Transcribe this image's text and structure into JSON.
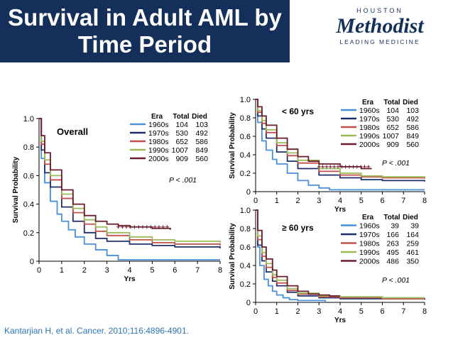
{
  "header": {
    "title_line1": "Survival in Adult AML by",
    "title_line2": "Time Period",
    "logo_top": "HOUSTON",
    "logo_main": "Methodist",
    "logo_sub": "LEADING MEDICINE"
  },
  "citation": "Kantarjian H, et al. Cancer. 2010;116:4896-4901.",
  "colors": {
    "title_bg": "#14305a",
    "1960s": "#4a90d9",
    "1970s": "#1f2f6b",
    "1980s": "#c0504d",
    "1990s": "#9bbb59",
    "2000s": "#6b1b2b"
  },
  "chart_data": [
    {
      "type": "line",
      "name": "overall",
      "title": "Overall",
      "xlabel": "Yrs",
      "ylabel": "Survival Probability",
      "xlim": [
        0,
        8
      ],
      "ylim": [
        0,
        1.0
      ],
      "xticks": [
        "0",
        "1",
        "2",
        "3",
        "4",
        "5",
        "6",
        "7",
        "8"
      ],
      "yticks": [
        "0",
        "0.2",
        "0.4",
        "0.6",
        "0.8",
        "1.0"
      ],
      "legend_headers": [
        "Era",
        "Total",
        "Died"
      ],
      "pvalue": "P < .001",
      "series": [
        {
          "name": "1960s",
          "total": "104",
          "died": "103",
          "x": [
            0,
            0.1,
            0.25,
            0.5,
            0.8,
            1.0,
            1.3,
            1.6,
            2.0,
            2.5,
            3.0,
            3.5,
            8.0
          ],
          "y": [
            1.0,
            0.72,
            0.55,
            0.42,
            0.33,
            0.28,
            0.22,
            0.17,
            0.12,
            0.08,
            0.04,
            0.01,
            0.01
          ]
        },
        {
          "name": "1970s",
          "total": "530",
          "died": "492",
          "x": [
            0,
            0.1,
            0.25,
            0.5,
            1.0,
            1.5,
            2.0,
            2.5,
            3.0,
            4.0,
            5.0,
            6.0,
            8.0
          ],
          "y": [
            1.0,
            0.78,
            0.62,
            0.52,
            0.38,
            0.28,
            0.2,
            0.16,
            0.14,
            0.12,
            0.11,
            0.1,
            0.09
          ]
        },
        {
          "name": "1980s",
          "total": "652",
          "died": "586",
          "x": [
            0,
            0.1,
            0.25,
            0.5,
            1.0,
            1.5,
            2.0,
            2.5,
            3.0,
            4.0,
            5.0,
            6.0,
            8.0
          ],
          "y": [
            1.0,
            0.82,
            0.68,
            0.57,
            0.44,
            0.34,
            0.26,
            0.21,
            0.18,
            0.15,
            0.13,
            0.12,
            0.11
          ]
        },
        {
          "name": "1990s",
          "total": "1007",
          "died": "849",
          "x": [
            0,
            0.1,
            0.25,
            0.5,
            1.0,
            1.5,
            2.0,
            2.5,
            3.0,
            4.0,
            5.0,
            6.0,
            8.0
          ],
          "y": [
            1.0,
            0.84,
            0.71,
            0.6,
            0.47,
            0.37,
            0.29,
            0.24,
            0.2,
            0.17,
            0.15,
            0.14,
            0.13
          ]
        },
        {
          "name": "2000s",
          "total": "909",
          "died": "560",
          "x": [
            0,
            0.1,
            0.25,
            0.5,
            1.0,
            1.5,
            2.0,
            2.5,
            3.0,
            3.5,
            4.0,
            5.0,
            5.8
          ],
          "y": [
            1.0,
            0.88,
            0.76,
            0.64,
            0.5,
            0.4,
            0.32,
            0.28,
            0.26,
            0.25,
            0.24,
            0.23,
            0.22
          ]
        }
      ]
    },
    {
      "type": "line",
      "name": "under-60",
      "title": "< 60 yrs",
      "xlabel": "Yrs",
      "ylabel": "Survival Probability",
      "xlim": [
        0,
        8
      ],
      "ylim": [
        0,
        1.0
      ],
      "xticks": [
        "0",
        "1",
        "2",
        "3",
        "4",
        "5",
        "6",
        "7",
        "8"
      ],
      "yticks": [
        "0",
        "0.2",
        "0.4",
        "0.6",
        "0.8",
        "1.0"
      ],
      "legend_headers": [
        "Era",
        "Total",
        "Died"
      ],
      "pvalue": "P < .001",
      "series": [
        {
          "name": "1960s",
          "total": "104",
          "died": "103",
          "x": [
            0,
            0.1,
            0.3,
            0.5,
            0.8,
            1.0,
            1.5,
            2.0,
            2.5,
            3.0,
            3.5,
            8.0
          ],
          "y": [
            1.0,
            0.75,
            0.55,
            0.45,
            0.35,
            0.3,
            0.2,
            0.12,
            0.07,
            0.04,
            0.02,
            0.02
          ]
        },
        {
          "name": "1970s",
          "total": "530",
          "died": "492",
          "x": [
            0,
            0.1,
            0.3,
            0.5,
            1.0,
            1.5,
            2.0,
            3.0,
            4.0,
            5.0,
            6.0,
            8.0
          ],
          "y": [
            1.0,
            0.82,
            0.68,
            0.58,
            0.43,
            0.33,
            0.25,
            0.18,
            0.15,
            0.13,
            0.12,
            0.11
          ]
        },
        {
          "name": "1980s",
          "total": "652",
          "died": "586",
          "x": [
            0,
            0.1,
            0.3,
            0.5,
            1.0,
            1.5,
            2.0,
            3.0,
            4.0,
            5.0,
            6.0,
            8.0
          ],
          "y": [
            1.0,
            0.86,
            0.74,
            0.64,
            0.5,
            0.39,
            0.31,
            0.22,
            0.18,
            0.16,
            0.15,
            0.14
          ]
        },
        {
          "name": "1990s",
          "total": "1007",
          "died": "849",
          "x": [
            0,
            0.1,
            0.3,
            0.5,
            1.0,
            1.5,
            2.0,
            3.0,
            4.0,
            5.0,
            6.0,
            8.0
          ],
          "y": [
            1.0,
            0.88,
            0.77,
            0.67,
            0.53,
            0.42,
            0.34,
            0.25,
            0.2,
            0.17,
            0.16,
            0.15
          ]
        },
        {
          "name": "2000s",
          "total": "909",
          "died": "560",
          "x": [
            0,
            0.1,
            0.3,
            0.5,
            1.0,
            1.5,
            2.0,
            2.5,
            3.0,
            4.0,
            5.0,
            5.5
          ],
          "y": [
            1.0,
            0.92,
            0.82,
            0.72,
            0.58,
            0.46,
            0.38,
            0.33,
            0.3,
            0.27,
            0.25,
            0.25
          ]
        }
      ]
    },
    {
      "type": "line",
      "name": "over-60",
      "title": "≥ 60 yrs",
      "xlabel": "Yrs",
      "ylabel": "Survival Probability",
      "xlim": [
        0,
        8
      ],
      "ylim": [
        0,
        1.0
      ],
      "xticks": [
        "0",
        "1",
        "2",
        "3",
        "4",
        "5",
        "6",
        "7",
        "8"
      ],
      "yticks": [
        "0",
        "0.2",
        "0.4",
        "0.6",
        "0.8",
        "1.0"
      ],
      "legend_headers": [
        "Era",
        "Total",
        "Died"
      ],
      "pvalue": "P < .001",
      "series": [
        {
          "name": "1960s",
          "total": "39",
          "died": "39",
          "x": [
            0,
            0.1,
            0.2,
            0.4,
            0.6,
            0.8,
            1.0,
            1.3,
            1.6,
            2.0,
            2.5,
            3.3
          ],
          "y": [
            1.0,
            0.6,
            0.4,
            0.25,
            0.18,
            0.12,
            0.08,
            0.05,
            0.03,
            0.02,
            0.02,
            0.0
          ]
        },
        {
          "name": "1970s",
          "total": "166",
          "died": "164",
          "x": [
            0,
            0.1,
            0.3,
            0.5,
            0.8,
            1.0,
            1.5,
            2.0,
            3.0,
            4.0,
            6.0,
            8.0
          ],
          "y": [
            1.0,
            0.62,
            0.45,
            0.33,
            0.23,
            0.18,
            0.11,
            0.07,
            0.05,
            0.04,
            0.04,
            0.03
          ]
        },
        {
          "name": "1980s",
          "total": "263",
          "died": "259",
          "x": [
            0,
            0.1,
            0.3,
            0.5,
            0.8,
            1.0,
            1.5,
            2.0,
            3.0,
            4.0,
            6.0,
            8.0
          ],
          "y": [
            1.0,
            0.68,
            0.5,
            0.38,
            0.27,
            0.21,
            0.13,
            0.09,
            0.06,
            0.05,
            0.04,
            0.04
          ]
        },
        {
          "name": "1990s",
          "total": "495",
          "died": "461",
          "x": [
            0,
            0.1,
            0.3,
            0.5,
            0.8,
            1.0,
            1.5,
            2.0,
            3.0,
            4.0,
            6.0,
            8.0
          ],
          "y": [
            1.0,
            0.72,
            0.54,
            0.42,
            0.3,
            0.24,
            0.15,
            0.1,
            0.07,
            0.06,
            0.05,
            0.05
          ]
        },
        {
          "name": "2000s",
          "total": "486",
          "died": "350",
          "x": [
            0,
            0.1,
            0.3,
            0.5,
            0.8,
            1.0,
            1.5,
            2.0,
            2.5,
            3.0,
            3.5,
            4.0
          ],
          "y": [
            1.0,
            0.78,
            0.6,
            0.47,
            0.35,
            0.28,
            0.18,
            0.12,
            0.09,
            0.08,
            0.07,
            0.07
          ]
        }
      ]
    }
  ]
}
